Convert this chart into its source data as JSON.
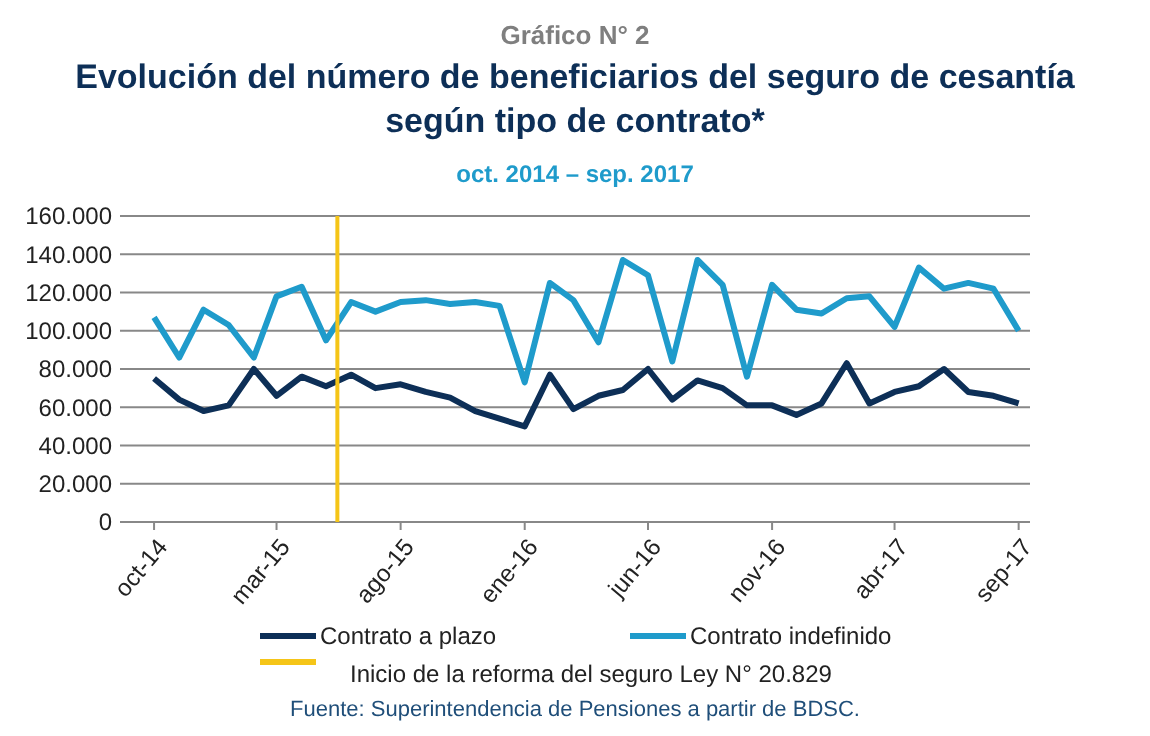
{
  "chart_data": {
    "type": "line",
    "title": "Gráfico N° 2",
    "subtitle": "Evolución del número de beneficiarios del seguro de cesantía según tipo de contrato*",
    "annotations": [
      "oct. 2014 – sep. 2017",
      "Fuente: Superintendencia de Pensiones a partir de BDSC."
    ],
    "x": [
      "2014-10",
      "2014-11",
      "2014-12",
      "2015-01",
      "2015-02",
      "2015-03",
      "2015-04",
      "2015-05",
      "2015-06",
      "2015-07",
      "2015-08",
      "2015-09",
      "2015-10",
      "2015-11",
      "2015-12",
      "2016-01",
      "2016-02",
      "2016-03",
      "2016-04",
      "2016-05",
      "2016-06",
      "2016-07",
      "2016-08",
      "2016-09",
      "2016-10",
      "2016-11",
      "2016-12",
      "2017-01",
      "2017-02",
      "2017-03",
      "2017-04",
      "2017-05",
      "2017-06",
      "2017-07",
      "2017-08",
      "2017-09"
    ],
    "series": [
      {
        "name": "Contrato a plazo",
        "color": "#0d2f57",
        "values": [
          75000,
          64000,
          58000,
          61000,
          80000,
          66000,
          76000,
          71000,
          77000,
          70000,
          72000,
          68000,
          65000,
          58000,
          54000,
          50000,
          77000,
          59000,
          66000,
          69000,
          80000,
          64000,
          74000,
          70000,
          61000,
          61000,
          56000,
          62000,
          83000,
          62000,
          68000,
          71000,
          80000,
          68000,
          66000,
          62000
        ]
      },
      {
        "name": "Contrato indefinido",
        "color": "#1f9bcb",
        "values": [
          107000,
          86000,
          111000,
          103000,
          86000,
          118000,
          123000,
          95000,
          115000,
          110000,
          115000,
          116000,
          114000,
          115000,
          113000,
          73000,
          125000,
          116000,
          94000,
          137000,
          129000,
          84000,
          137000,
          124000,
          76000,
          124000,
          111000,
          109000,
          117000,
          118000,
          102000,
          133000,
          122000,
          125000,
          122000,
          100000
        ]
      }
    ],
    "xlim": [
      "2014-08-20",
      "2017-09-15"
    ],
    "xticks": [
      {
        "value": "2014-10",
        "label": "oct-14"
      },
      {
        "value": "2015-03",
        "label": "mar-15"
      },
      {
        "value": "2015-08",
        "label": "ago-15"
      },
      {
        "value": "2016-01",
        "label": "ene-16"
      },
      {
        "value": "2016-06",
        "label": "jun-16"
      },
      {
        "value": "2016-11",
        "label": "nov-16"
      },
      {
        "value": "2017-04",
        "label": "abr-17"
      },
      {
        "value": "2017-09",
        "label": "sep-17"
      }
    ],
    "ylim": [
      0,
      160000
    ],
    "yticks": [
      0,
      {
        "value": 20000,
        "label": "20.000"
      },
      {
        "value": 40000,
        "label": "40.000"
      },
      {
        "value": 60000,
        "label": "60.000"
      },
      {
        "value": 80000,
        "label": "80.000"
      },
      {
        "value": 100000,
        "label": "100.000"
      },
      {
        "value": 120000,
        "label": "120.000"
      },
      {
        "value": 140000,
        "label": "140.000"
      },
      {
        "value": 160000,
        "label": "160.000"
      }
    ],
    "ref_lines": [
      {
        "axis": "x",
        "value": "2015-05-15",
        "label": "Inicio de la reforma del seguro Ley N° 20.829",
        "color": "#f5c518"
      }
    ],
    "grid": "y",
    "legend": "bottom",
    "marker": "none",
    "line_style": "solid"
  }
}
